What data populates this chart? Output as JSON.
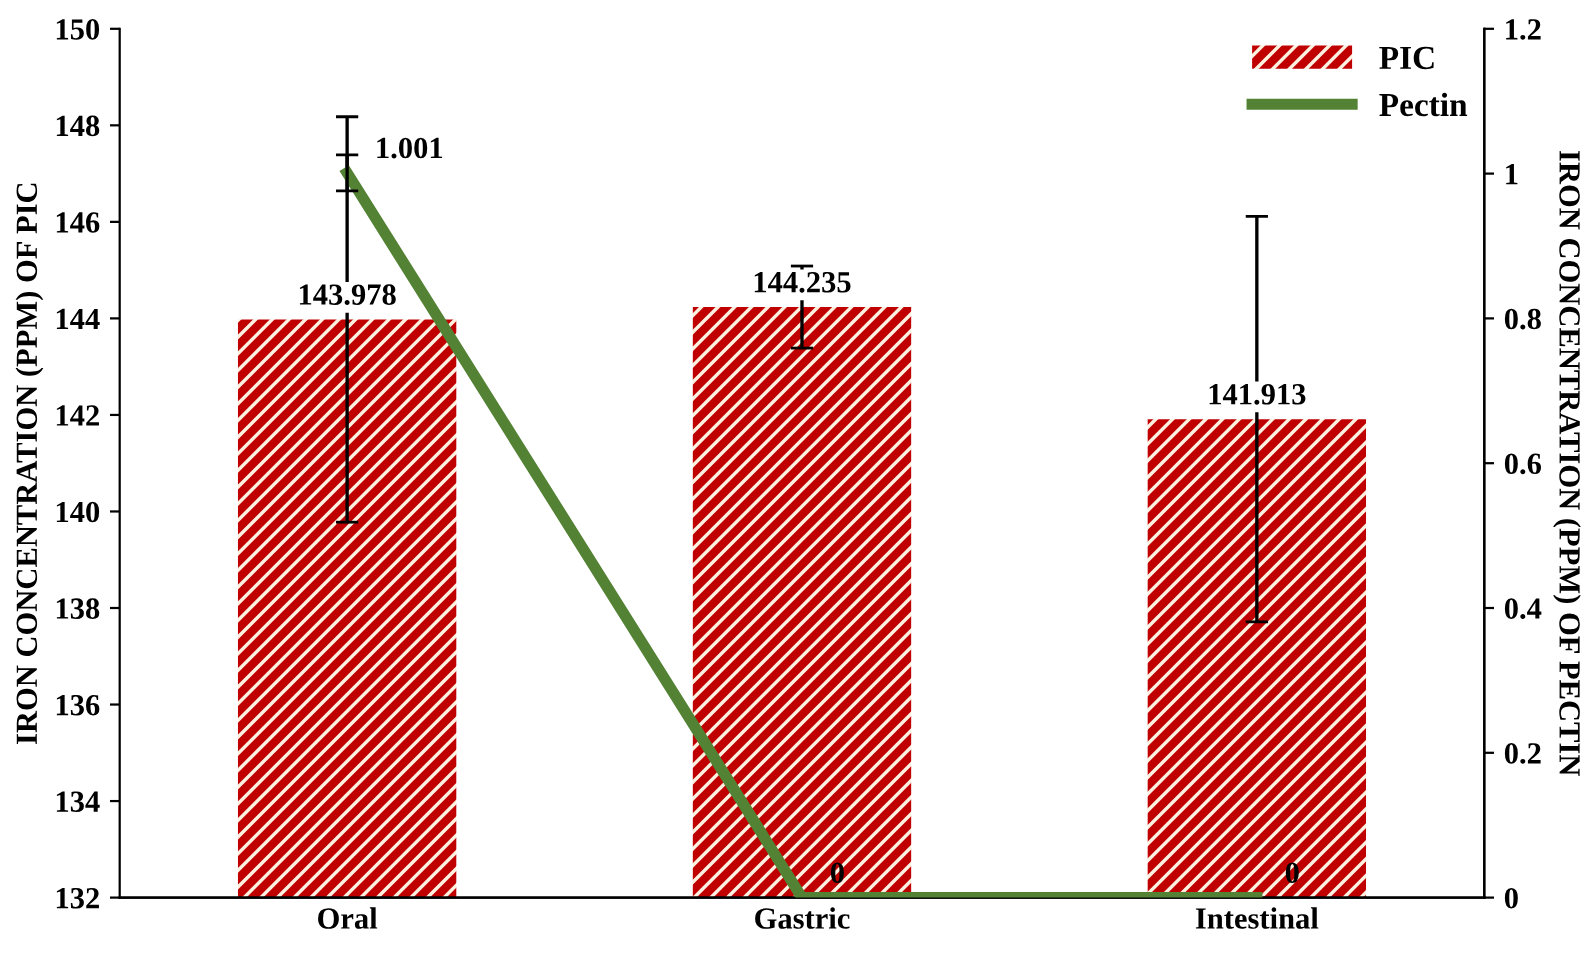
{
  "chart_data": {
    "type": "bar",
    "categories": [
      "Oral",
      "Gastric",
      "Intestinal"
    ],
    "series": [
      {
        "name": "PIC",
        "color": "#c00000",
        "values": [
          143.978,
          144.235,
          141.913
        ],
        "errors": [
          4.2,
          0.85,
          4.2
        ]
      },
      {
        "name": "Pectin",
        "type": "line",
        "axis": "y2",
        "color": "#548235",
        "values": [
          1.001,
          0,
          0
        ],
        "errors": [
          0.025,
          null,
          null
        ]
      }
    ],
    "ylabel": "IRON CONCENTRATION (PPM) OF PIC",
    "y2label": "IRON CONCENTRATION (PPM) OF PECTIN",
    "ylim": [
      132,
      150
    ],
    "yticks": [
      132,
      134,
      136,
      138,
      140,
      142,
      144,
      146,
      148,
      150
    ],
    "y2lim": [
      0,
      1.2
    ],
    "y2ticks": [
      {
        "value": 0,
        "label": "0"
      },
      {
        "value": 0.2,
        "label": "0.2"
      },
      {
        "value": 0.4,
        "label": "0.4"
      },
      {
        "value": 0.6,
        "label": "0.6"
      },
      {
        "value": 0.8,
        "label": "0.8"
      },
      {
        "value": 1,
        "label": "1"
      },
      {
        "value": 1.2,
        "label": "1.2"
      }
    ],
    "data_labels": true,
    "legend": "top right",
    "grid": false,
    "marker": "none",
    "line_style": "solid"
  }
}
